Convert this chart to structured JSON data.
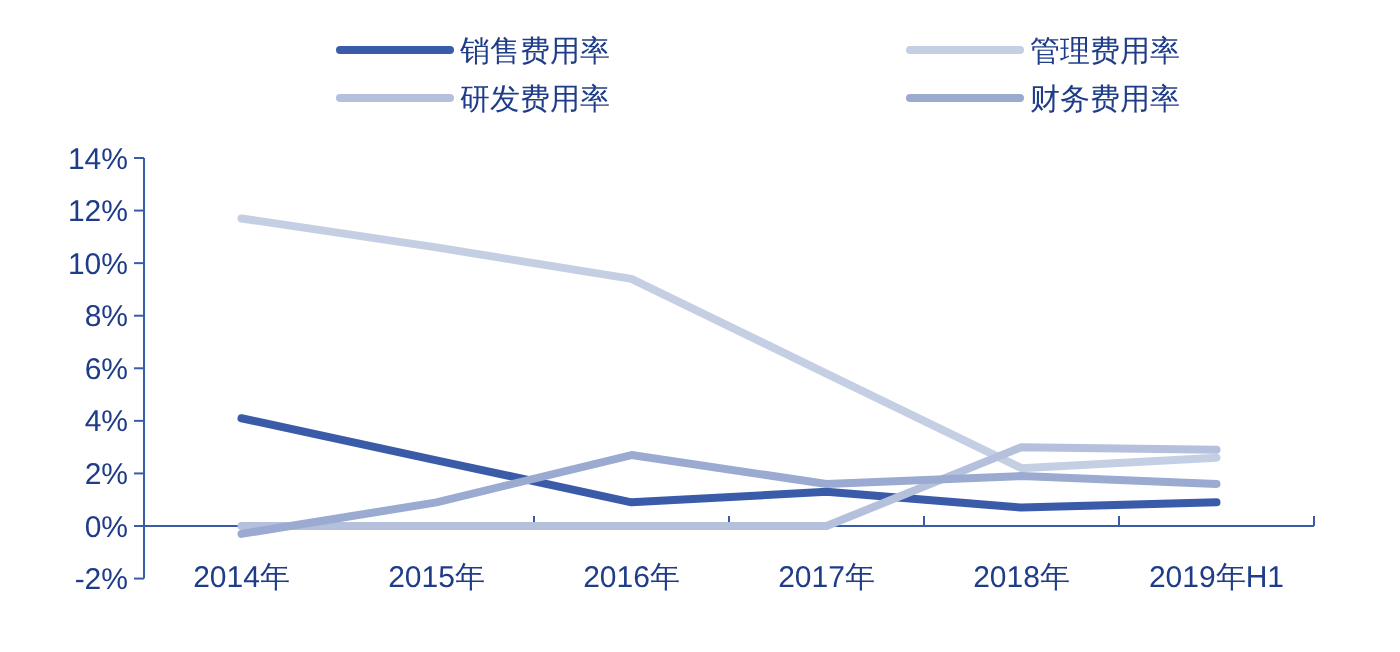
{
  "chart_data": {
    "type": "line",
    "categories": [
      "2014年",
      "2015年",
      "2016年",
      "2017年",
      "2018年",
      "2019年H1"
    ],
    "series": [
      {
        "name": "销售费用率",
        "color": "#3a5ca8",
        "values": [
          4.1,
          2.5,
          0.9,
          1.3,
          0.7,
          0.9
        ]
      },
      {
        "name": "管理费用率",
        "color": "#c5cfe4",
        "values": [
          11.7,
          10.6,
          9.4,
          5.8,
          2.2,
          2.6
        ]
      },
      {
        "name": "研发费用率",
        "color": "#b4c0dc",
        "values": [
          0,
          0,
          0,
          0,
          3.0,
          2.9
        ]
      },
      {
        "name": "财务费用率",
        "color": "#9aaad0",
        "values": [
          -0.3,
          0.9,
          2.7,
          1.6,
          1.9,
          1.6
        ]
      }
    ],
    "ylim": [
      -2,
      14
    ],
    "yticks": [
      {
        "value": -2,
        "label": "-2%"
      },
      {
        "value": 0,
        "label": "0%"
      },
      {
        "value": 2,
        "label": "2%"
      },
      {
        "value": 4,
        "label": "4%"
      },
      {
        "value": 6,
        "label": "6%"
      },
      {
        "value": 8,
        "label": "8%"
      },
      {
        "value": 10,
        "label": "10%"
      },
      {
        "value": 12,
        "label": "12%"
      },
      {
        "value": 14,
        "label": "14%"
      }
    ],
    "grid": false,
    "legend": "top",
    "marker": "none",
    "line_style": "solid"
  }
}
